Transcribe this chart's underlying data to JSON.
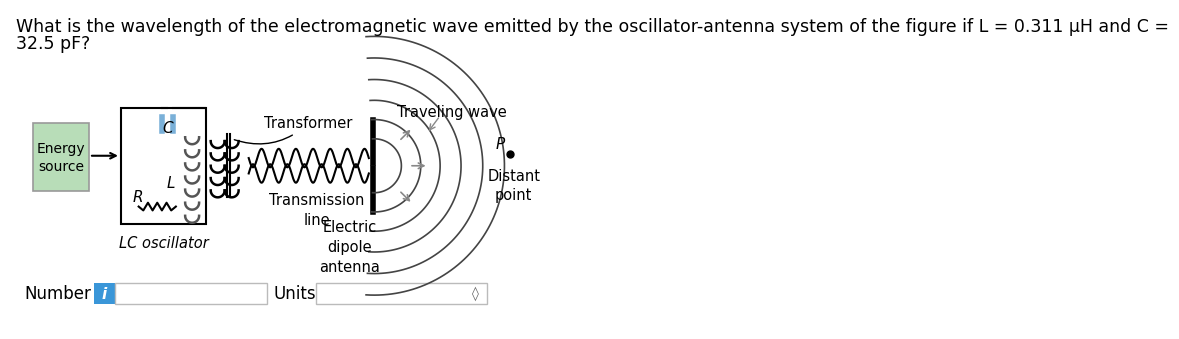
{
  "question_line1": "What is the wavelength of the electromagnetic wave emitted by the oscillator-antenna system of the figure if L = 0.311 μH and C =",
  "question_line2": "32.5 pF?",
  "question_fontsize": 12.5,
  "bg_color": "#ffffff",
  "text_color": "#000000",
  "label_color": "#555555",
  "energy_box_color": "#b8ddb8",
  "lc_label": "LC oscillator",
  "transformer_label": "Transformer",
  "traveling_label": "Traveling wave",
  "number_label": "Number",
  "units_label": "Units",
  "p_label": "P",
  "c_label": "C",
  "l_label": "L",
  "r_label": "R",
  "input_box_color": "#3a96d8",
  "cap_color": "#7ab0d8",
  "coil_color": "#555555"
}
